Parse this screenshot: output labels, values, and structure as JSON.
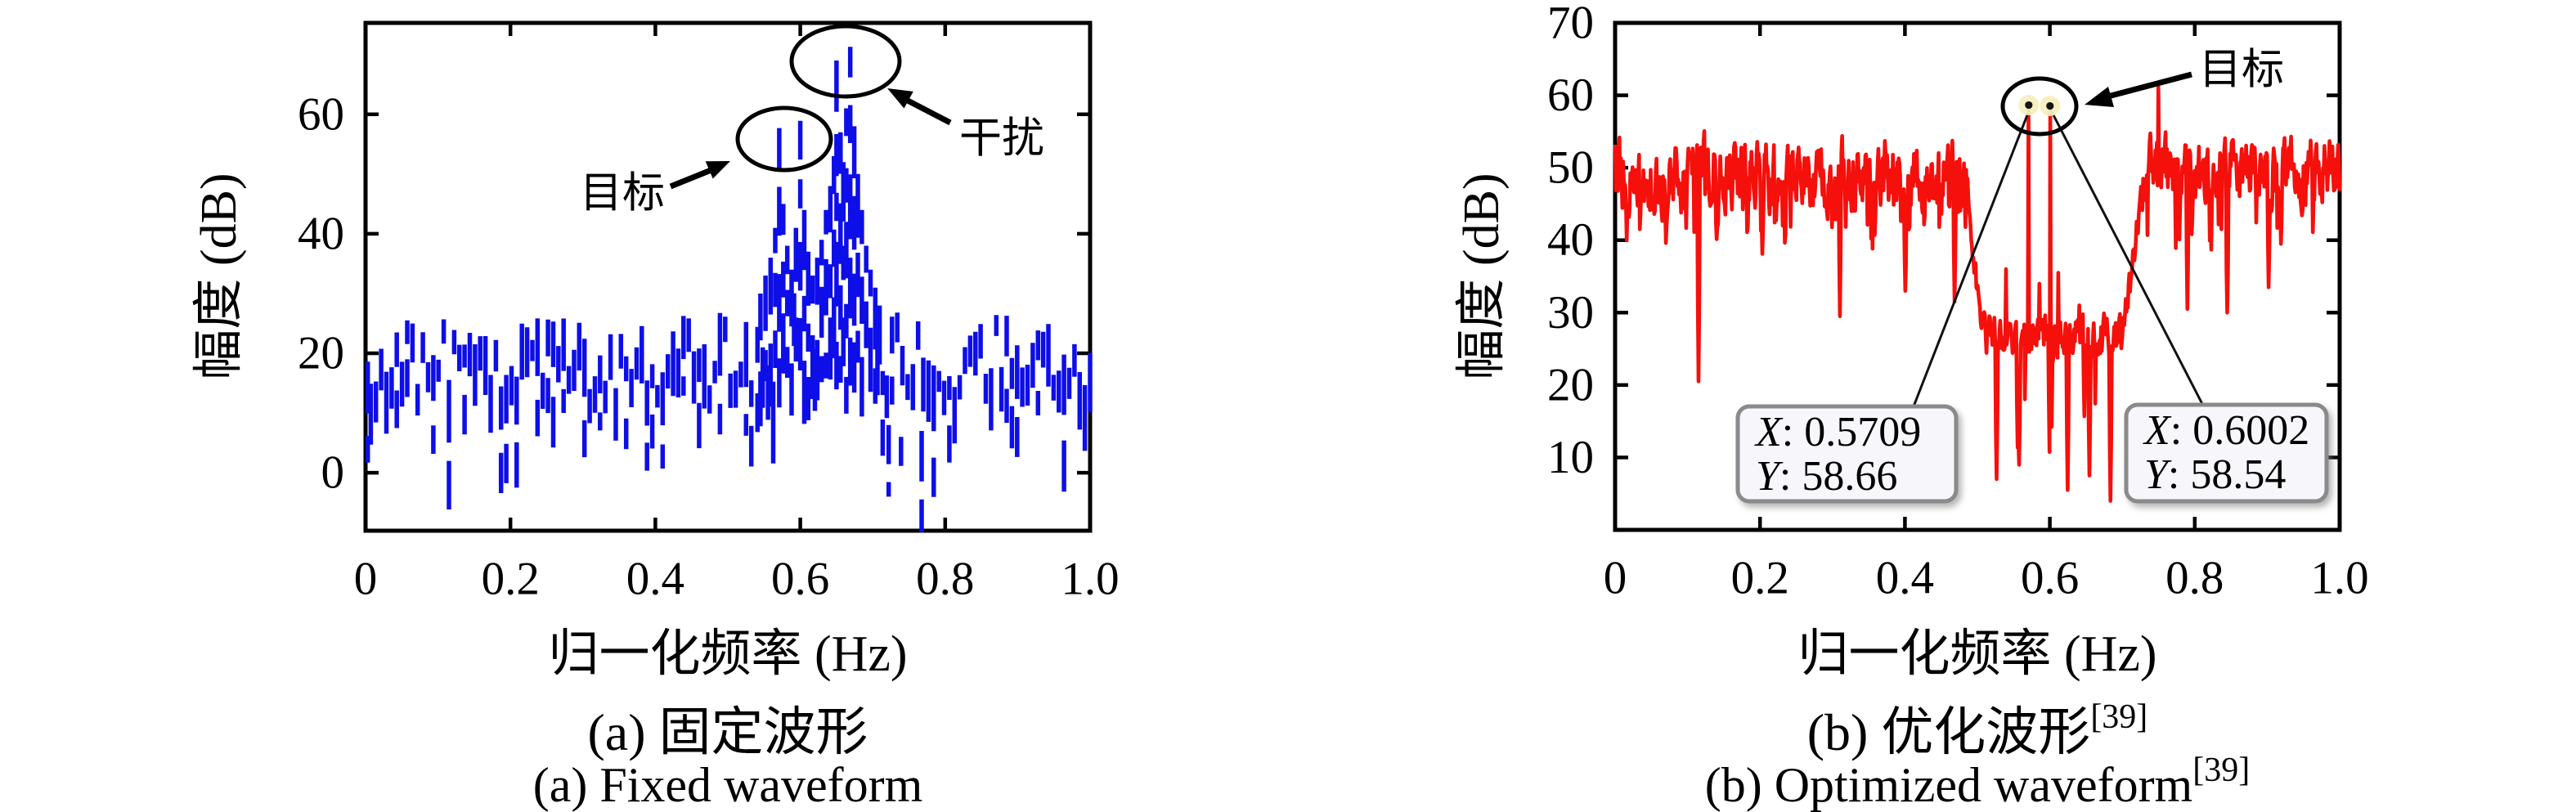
{
  "figure": {
    "background": "#ffffff",
    "panels": [
      {
        "id": "a",
        "ylabel": "幅度 (dB)",
        "xlabel": "归一化频率 (Hz)",
        "caption_zh": "(a) 固定波形",
        "caption_zh_sup": "",
        "caption_en": "(a) Fixed waveform",
        "caption_en_sup": "",
        "annotations": {
          "target": "目标",
          "interference": "干扰"
        }
      },
      {
        "id": "b",
        "ylabel": "幅度 (dB)",
        "xlabel": "归一化频率 (Hz)",
        "caption_zh": "(b) 优化波形",
        "caption_zh_sup": "[39]",
        "caption_en": "(b) Optimized waveform",
        "caption_en_sup": "[39]",
        "annotations": {
          "target": "目标"
        },
        "datatips": [
          {
            "x_label": "X",
            "x_text": ": 0.5709",
            "y_label": "Y",
            "y_text": ": 58.66"
          },
          {
            "x_label": "X",
            "x_text": ": 0.6002",
            "y_label": "Y",
            "y_text": ": 58.54"
          }
        ]
      }
    ]
  },
  "chart_data": [
    {
      "type": "line",
      "subtype": "spectrum-dashed-stems",
      "title": "(a) 固定波形 / Fixed waveform",
      "xlabel": "归一化频率 (Hz)",
      "ylabel": "幅度 (dB)",
      "xlim": [
        0,
        1
      ],
      "ylim": [
        -9.7,
        75.3
      ],
      "xticks": {
        "values": [
          0,
          0.2,
          0.4,
          0.6,
          0.8,
          1.0
        ],
        "labels": [
          "0",
          "0.2",
          "0.4",
          "0.6",
          "0.8",
          "1.0"
        ]
      },
      "yticks": {
        "values": [
          0,
          20,
          40,
          60
        ],
        "labels": [
          "0",
          "20",
          "40",
          "60"
        ]
      },
      "series_color": "#0d0ee8",
      "grid": false,
      "noise_floor_db": {
        "min": 10,
        "max": 30,
        "mean": 20
      },
      "target_peaks": [
        {
          "x": 0.571,
          "y": 57.7
        },
        {
          "x": 0.6,
          "y": 58.9
        }
      ],
      "interference_peaks": [
        {
          "x": 0.65,
          "y": 69.0
        },
        {
          "x": 0.669,
          "y": 71.3
        }
      ],
      "cluster_columns": [
        [
          0.545,
          30
        ],
        [
          0.552,
          33
        ],
        [
          0.559,
          36
        ],
        [
          0.5655,
          41
        ],
        [
          0.571,
          57.7
        ],
        [
          0.5765,
          45
        ],
        [
          0.582,
          38
        ],
        [
          0.588,
          34
        ],
        [
          0.594,
          41
        ],
        [
          0.6,
          58.9
        ],
        [
          0.6055,
          44
        ],
        [
          0.611,
          37
        ],
        [
          0.617,
          33
        ],
        [
          0.6235,
          36
        ],
        [
          0.6295,
          39
        ],
        [
          0.6355,
          44
        ],
        [
          0.6415,
          48
        ],
        [
          0.6465,
          53
        ],
        [
          0.65,
          69
        ],
        [
          0.6555,
          57
        ],
        [
          0.6595,
          52
        ],
        [
          0.6635,
          61
        ],
        [
          0.669,
          71.3
        ],
        [
          0.6745,
          58
        ],
        [
          0.6795,
          50
        ],
        [
          0.685,
          44
        ],
        [
          0.691,
          38
        ],
        [
          0.697,
          34
        ],
        [
          0.7035,
          31
        ],
        [
          0.7095,
          28
        ]
      ],
      "hang_columns": [
        [
          0.722,
          8,
          -4
        ],
        [
          0.739,
          6,
          -1.5
        ]
      ],
      "below_axis_spike": [
        [
          0.7675,
          7,
          -10
        ]
      ],
      "annotations": [
        {
          "text": "目标",
          "points_to": "target_peaks"
        },
        {
          "text": "干扰",
          "points_to": "interference_peaks"
        }
      ]
    },
    {
      "type": "line",
      "subtype": "spectrum-continuous",
      "title": "(b) 优化波形[39] / Optimized waveform[39]",
      "xlabel": "归一化频率 (Hz)",
      "ylabel": "幅度 (dB)",
      "xlim": [
        0,
        1
      ],
      "ylim": [
        0,
        70
      ],
      "xticks": {
        "values": [
          0,
          0.2,
          0.4,
          0.6,
          0.8,
          1.0
        ],
        "labels": [
          "0",
          "0.2",
          "0.4",
          "0.6",
          "0.8",
          "1.0"
        ]
      },
      "yticks": {
        "values": [
          10,
          20,
          30,
          40,
          50,
          60,
          70
        ],
        "labels": [
          "10",
          "20",
          "30",
          "40",
          "50",
          "60",
          "70"
        ]
      },
      "series_color": "#f5100c",
      "grid": false,
      "noise_floor_db": {
        "min": 33,
        "max": 57,
        "mean": 48
      },
      "notch": {
        "x_start": 0.505,
        "x_end": 0.698,
        "mean_db": 26,
        "deep_dips": [
          [
            0.527,
            7
          ],
          [
            0.558,
            9
          ],
          [
            0.625,
            5.5
          ],
          [
            0.655,
            7.5
          ],
          [
            0.684,
            4
          ]
        ],
        "small_spikes": [
          [
            0.54,
            36
          ],
          [
            0.5855,
            34
          ],
          [
            0.612,
            35.5
          ],
          [
            0.641,
            31
          ],
          [
            0.671,
            28
          ]
        ]
      },
      "target_peaks": [
        {
          "x": 0.5709,
          "y": 58.66
        },
        {
          "x": 0.6002,
          "y": 58.54
        }
      ],
      "other_features": {
        "pre_notch_deep_dip": [
          0.115,
          20.5
        ],
        "pre_notch_dips": [
          [
            0.31,
            29.5
          ],
          [
            0.4,
            33
          ],
          [
            0.468,
            31.5
          ]
        ],
        "post_notch_spike": [
          0.75,
          61.2
        ],
        "post_notch_dips": [
          [
            0.79,
            30.5
          ],
          [
            0.845,
            30
          ],
          [
            0.902,
            33.5
          ]
        ]
      },
      "datatips": [
        {
          "x": 0.5709,
          "y": 58.66
        },
        {
          "x": 0.6002,
          "y": 58.54
        }
      ],
      "annotations": [
        {
          "text": "目标",
          "points_to": "target_peaks"
        }
      ]
    }
  ],
  "colors": {
    "axis": "#000000",
    "annotation": "#000000",
    "series_fixed": "#0d0ee8",
    "series_optimized": "#f5100c",
    "datatip_fill": "#f7f7fb",
    "datatip_border": "#8a8a8a",
    "marker_halo": "#f5efc0",
    "marker_core": "#151515"
  }
}
